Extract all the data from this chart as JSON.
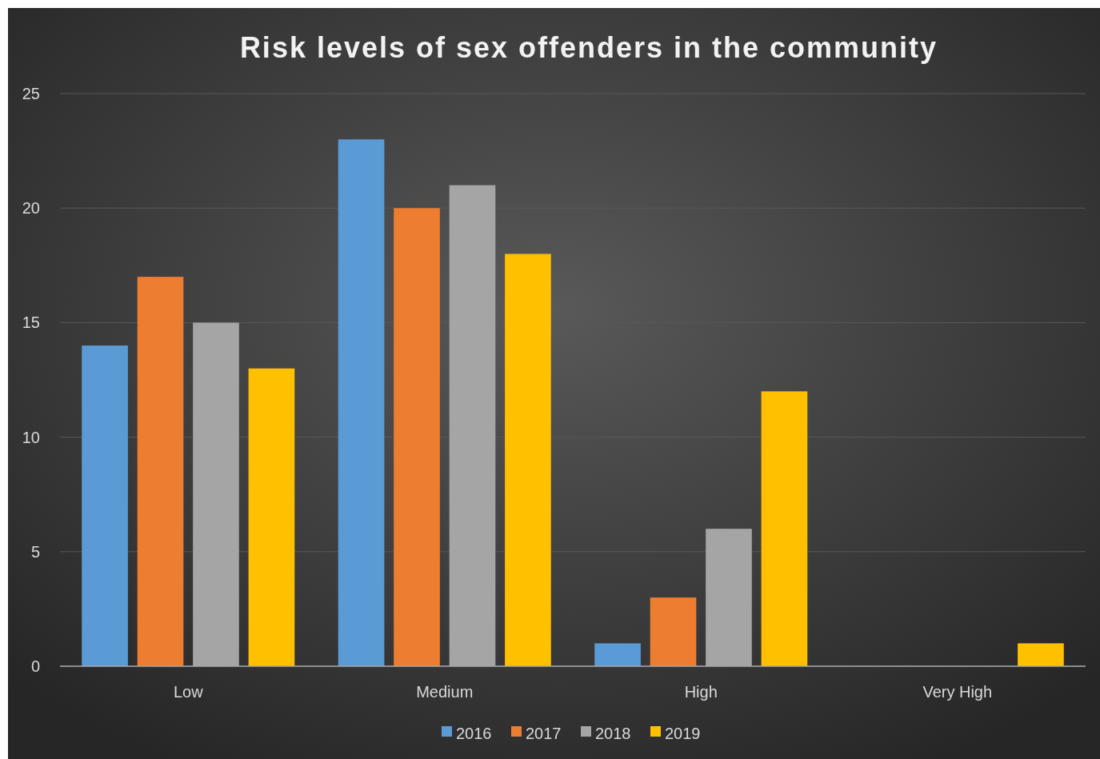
{
  "chart_data": {
    "type": "bar",
    "title": "Risk levels of sex offenders in the community",
    "categories": [
      "Low",
      "Medium",
      "High",
      "Very High"
    ],
    "series": [
      {
        "name": "2016",
        "color": "#5b9bd5",
        "values": [
          14,
          23,
          1,
          0
        ]
      },
      {
        "name": "2017",
        "color": "#ed7d31",
        "values": [
          17,
          20,
          3,
          0
        ]
      },
      {
        "name": "2018",
        "color": "#a5a5a5",
        "values": [
          15,
          21,
          6,
          0
        ]
      },
      {
        "name": "2019",
        "color": "#ffc000",
        "values": [
          13,
          18,
          12,
          1
        ]
      }
    ],
    "ylim": [
      0,
      25
    ],
    "yticks": [
      0,
      5,
      10,
      15,
      20,
      25
    ],
    "grid": "y",
    "legend": "bottom"
  }
}
